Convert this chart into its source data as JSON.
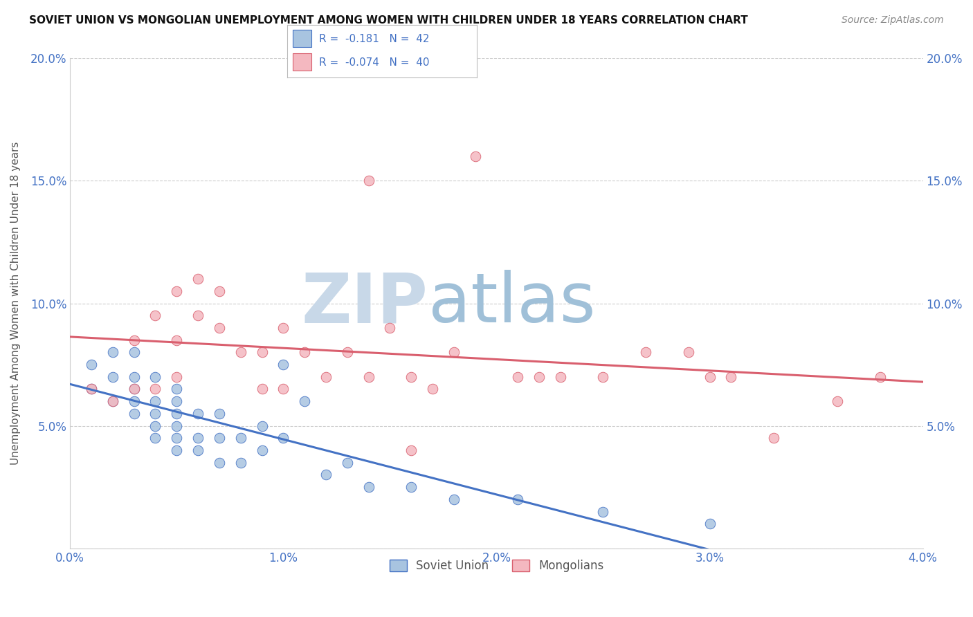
{
  "title": "SOVIET UNION VS MONGOLIAN UNEMPLOYMENT AMONG WOMEN WITH CHILDREN UNDER 18 YEARS CORRELATION CHART",
  "source": "Source: ZipAtlas.com",
  "ylabel": "Unemployment Among Women with Children Under 18 years",
  "xlim": [
    0.0,
    0.04
  ],
  "ylim": [
    0.0,
    0.2
  ],
  "xticks": [
    0.0,
    0.01,
    0.02,
    0.03,
    0.04
  ],
  "xticklabels": [
    "0.0%",
    "1.0%",
    "2.0%",
    "3.0%",
    "4.0%"
  ],
  "yticks": [
    0.0,
    0.05,
    0.1,
    0.15,
    0.2
  ],
  "yticklabels": [
    "",
    "5.0%",
    "10.0%",
    "15.0%",
    "20.0%"
  ],
  "soviet_R": -0.181,
  "soviet_N": 42,
  "mongol_R": -0.074,
  "mongol_N": 40,
  "soviet_color": "#a8c4e0",
  "mongol_color": "#f4b8c0",
  "soviet_line_color": "#4472c4",
  "mongol_line_color": "#d95f6e",
  "watermark_zip": "ZIP",
  "watermark_atlas": "atlas",
  "watermark_color_zip": "#c8d8e8",
  "watermark_color_atlas": "#a0c0d8",
  "legend_labels": [
    "Soviet Union",
    "Mongolians"
  ],
  "soviet_x": [
    0.001,
    0.001,
    0.002,
    0.002,
    0.002,
    0.003,
    0.003,
    0.003,
    0.003,
    0.003,
    0.004,
    0.004,
    0.004,
    0.004,
    0.004,
    0.005,
    0.005,
    0.005,
    0.005,
    0.005,
    0.005,
    0.006,
    0.006,
    0.006,
    0.007,
    0.007,
    0.007,
    0.008,
    0.008,
    0.009,
    0.009,
    0.01,
    0.01,
    0.011,
    0.012,
    0.013,
    0.014,
    0.016,
    0.018,
    0.021,
    0.025,
    0.03
  ],
  "soviet_y": [
    0.065,
    0.075,
    0.06,
    0.07,
    0.08,
    0.055,
    0.06,
    0.065,
    0.07,
    0.08,
    0.045,
    0.05,
    0.055,
    0.06,
    0.07,
    0.04,
    0.045,
    0.05,
    0.055,
    0.06,
    0.065,
    0.04,
    0.045,
    0.055,
    0.035,
    0.045,
    0.055,
    0.035,
    0.045,
    0.04,
    0.05,
    0.045,
    0.075,
    0.06,
    0.03,
    0.035,
    0.025,
    0.025,
    0.02,
    0.02,
    0.015,
    0.01
  ],
  "mongol_x": [
    0.001,
    0.002,
    0.003,
    0.003,
    0.004,
    0.004,
    0.005,
    0.005,
    0.005,
    0.006,
    0.006,
    0.007,
    0.007,
    0.008,
    0.009,
    0.009,
    0.01,
    0.01,
    0.011,
    0.012,
    0.013,
    0.014,
    0.015,
    0.016,
    0.017,
    0.018,
    0.019,
    0.021,
    0.023,
    0.025,
    0.027,
    0.029,
    0.031,
    0.033,
    0.036,
    0.038,
    0.03,
    0.022,
    0.016,
    0.014
  ],
  "mongol_y": [
    0.065,
    0.06,
    0.065,
    0.085,
    0.065,
    0.095,
    0.07,
    0.085,
    0.105,
    0.095,
    0.11,
    0.09,
    0.105,
    0.08,
    0.065,
    0.08,
    0.065,
    0.09,
    0.08,
    0.07,
    0.08,
    0.07,
    0.09,
    0.07,
    0.065,
    0.08,
    0.16,
    0.07,
    0.07,
    0.07,
    0.08,
    0.08,
    0.07,
    0.045,
    0.06,
    0.07,
    0.07,
    0.07,
    0.04,
    0.15
  ]
}
